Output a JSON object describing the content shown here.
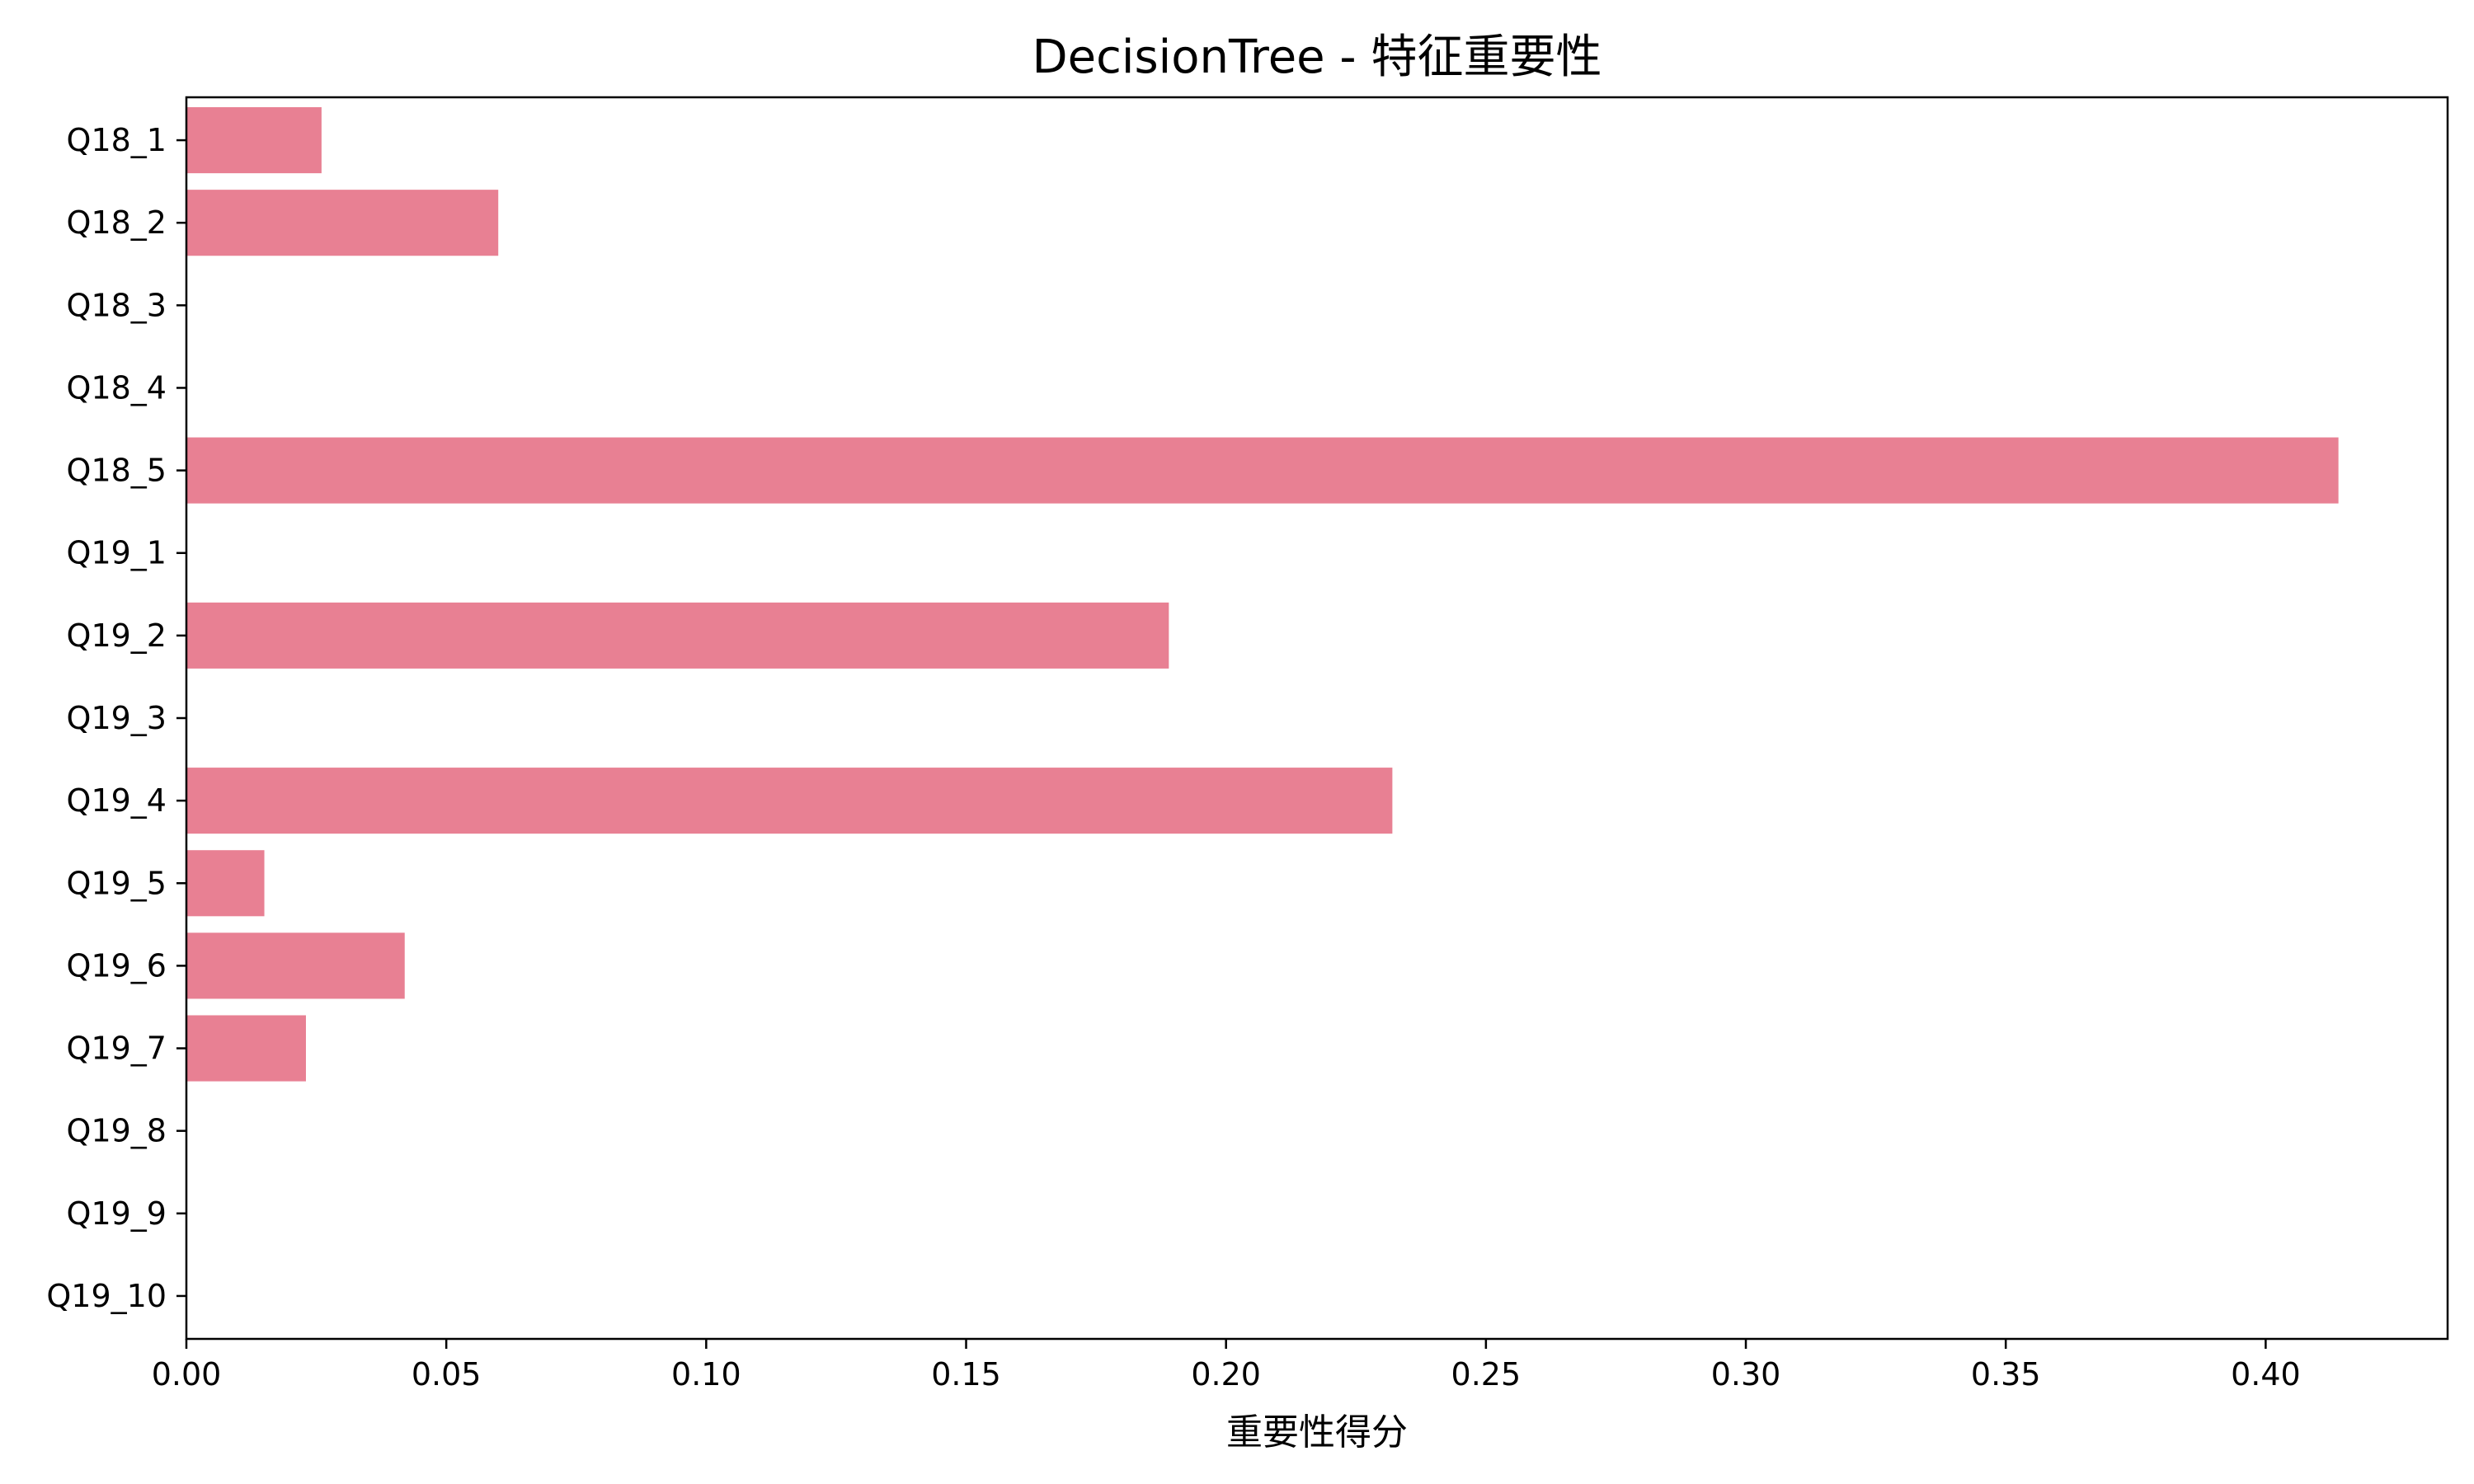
{
  "chart_data": {
    "type": "bar",
    "orientation": "horizontal",
    "title": "DecisionTree - 特征重要性",
    "xlabel": "重要性得分",
    "ylabel": "",
    "categories": [
      "Q18_1",
      "Q18_2",
      "Q18_3",
      "Q18_4",
      "Q18_5",
      "Q19_1",
      "Q19_2",
      "Q19_3",
      "Q19_4",
      "Q19_5",
      "Q19_6",
      "Q19_7",
      "Q19_8",
      "Q19_9",
      "Q19_10"
    ],
    "values": [
      0.026,
      0.06,
      0.0,
      0.0,
      0.414,
      0.0,
      0.189,
      0.0,
      0.232,
      0.015,
      0.042,
      0.023,
      0.0,
      0.0,
      0.0
    ],
    "xlim": [
      0,
      0.435
    ],
    "xticks": [
      0.0,
      0.05,
      0.1,
      0.15,
      0.2,
      0.25,
      0.3,
      0.35,
      0.4
    ],
    "xtick_labels": [
      "0.00",
      "0.05",
      "0.10",
      "0.15",
      "0.20",
      "0.25",
      "0.30",
      "0.35",
      "0.40"
    ],
    "bar_color": "#e88093",
    "grid": false,
    "legend": "none"
  }
}
